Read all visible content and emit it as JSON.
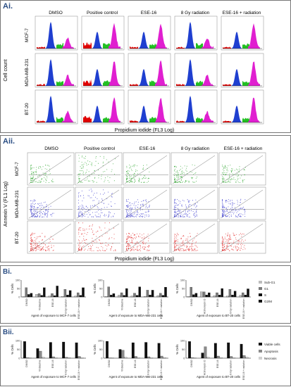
{
  "panels": {
    "Ai": {
      "label": "Ai.",
      "columns": [
        "DMSO",
        "Positive control",
        "ESE-16",
        "8 Gy radiation",
        "ESE-16  + radiation"
      ],
      "rows": [
        "MCF-7",
        "MDA-MB-231",
        "BT-20"
      ],
      "ylabel": "Cell count",
      "xlabel": "Propidium iodide (FL3 Log)",
      "colors": {
        "sub_g1": "#e00000",
        "g1": "#1f3fd0",
        "s": "#22c022",
        "g2m": "#e01fd0"
      }
    },
    "Aii": {
      "label": "Aii.",
      "columns": [
        "DMSO",
        "Positive control",
        "ESE-16",
        "8 Gy radiation",
        "ESE-16  + radiation"
      ],
      "rows": [
        "MCF-7",
        "MDA-MB-231",
        "BT-20"
      ],
      "ylabel": "Annexin V (FL1 Log)",
      "xlabel": "Propidium iodide (FL3 Log)",
      "row_colors": [
        "#2aa52a",
        "#3333cc",
        "#e02020"
      ]
    },
    "Bi": {
      "label": "Bi.",
      "ylabel": "% Cells",
      "legend": [
        "Sub-G1",
        "G1",
        "S",
        "G2/M"
      ],
      "legend_colors": [
        "#bdbdbd",
        "#7a7a7a",
        "#101010",
        "#101010"
      ],
      "charts": [
        {
          "xlabel": "Agent of exposure to MCF-7 cells",
          "categories": [
            "DMSO",
            "Vinblastine",
            "ESE-16",
            "8 Gy radiation",
            "ESE-16 + radiation"
          ]
        },
        {
          "xlabel": "Agent of exposure to MDA-MB-231 cells",
          "categories": [
            "DMSO",
            "Vinblastine",
            "ESE-16",
            "8 Gy radiation",
            "ESE-16 + radiation"
          ]
        },
        {
          "xlabel": "Agent of exposure to BT-20 cells",
          "categories": [
            "DMSO",
            "Actinomycin D",
            "ESE-16",
            "8 Gy radiation",
            "ESE-16 + radiation"
          ]
        }
      ]
    },
    "Bii": {
      "label": "Bii.",
      "ylabel": "% Cells",
      "legend": [
        "Viable cells",
        "Apoptosis",
        "Necrosis"
      ],
      "legend_colors": [
        "#101010",
        "#8a8a8a",
        "#d0d0d0"
      ],
      "charts": [
        {
          "xlabel": "Agent of exposure to MCF-7 cells",
          "categories": [
            "DMSO",
            "Vinblastine",
            "ESE-16",
            "8 Gy radiation",
            "ESE-16 + radiation"
          ]
        },
        {
          "xlabel": "Agent of exposure to MDA-MB-231 cells",
          "categories": [
            "DMSO",
            "Vinblastine",
            "ESE-16",
            "8 Gy radiation",
            "ESE-16 + radiation"
          ]
        },
        {
          "xlabel": "Agent of exposure to BT-20 cells",
          "categories": [
            "DMSO",
            "Actinomycin D",
            "ESE-16",
            "8 Gy radiation",
            "ESE-16 + radiation"
          ]
        }
      ]
    }
  },
  "chart_data": [
    {
      "type": "bar",
      "xlabel": "Agent of exposure to MCF-7 cells",
      "ylabel": "% Cells",
      "ylim": [
        0,
        100
      ],
      "categories": [
        "DMSO",
        "Vinblastine",
        "ESE-16",
        "8 Gy radiation",
        "ESE-16 + radiation"
      ],
      "series": [
        {
          "name": "Sub-G1",
          "values": [
            2,
            15,
            5,
            3,
            6
          ]
        },
        {
          "name": "G1",
          "values": [
            55,
            20,
            20,
            45,
            25
          ]
        },
        {
          "name": "S",
          "values": [
            15,
            10,
            8,
            12,
            10
          ]
        },
        {
          "name": "G2/M",
          "values": [
            22,
            55,
            65,
            38,
            55
          ]
        }
      ]
    },
    {
      "type": "bar",
      "xlabel": "Agent of exposure to MDA-MB-231 cells",
      "ylabel": "% Cells",
      "ylim": [
        0,
        100
      ],
      "categories": [
        "DMSO",
        "Vinblastine",
        "ESE-16",
        "8 Gy radiation",
        "ESE-16 + radiation"
      ],
      "series": [
        {
          "name": "Sub-G1",
          "values": [
            3,
            10,
            6,
            4,
            8
          ]
        },
        {
          "name": "G1",
          "values": [
            60,
            25,
            22,
            40,
            22
          ]
        },
        {
          "name": "S",
          "values": [
            12,
            10,
            10,
            12,
            10
          ]
        },
        {
          "name": "G2/M",
          "values": [
            20,
            50,
            60,
            40,
            58
          ]
        }
      ]
    },
    {
      "type": "bar",
      "xlabel": "Agent of exposure to BT-20 cells",
      "ylabel": "% Cells",
      "ylim": [
        0,
        100
      ],
      "categories": [
        "DMSO",
        "Actinomycin D",
        "ESE-16",
        "8 Gy radiation",
        "ESE-16 + radiation"
      ],
      "series": [
        {
          "name": "Sub-G1",
          "values": [
            3,
            30,
            8,
            5,
            10
          ]
        },
        {
          "name": "G1",
          "values": [
            58,
            30,
            25,
            45,
            25
          ]
        },
        {
          "name": "S",
          "values": [
            14,
            12,
            12,
            12,
            12
          ]
        },
        {
          "name": "G2/M",
          "values": [
            22,
            25,
            50,
            35,
            48
          ]
        }
      ]
    },
    {
      "type": "bar",
      "xlabel": "Agent of exposure to MCF-7 cells",
      "ylabel": "% Cells",
      "ylim": [
        0,
        100
      ],
      "categories": [
        "DMSO",
        "Vinblastine",
        "ESE-16",
        "8 Gy radiation",
        "ESE-16 + radiation"
      ],
      "series": [
        {
          "name": "Viable cells",
          "values": [
            95,
            55,
            90,
            92,
            88
          ]
        },
        {
          "name": "Apoptosis",
          "values": [
            3,
            40,
            8,
            5,
            10
          ]
        },
        {
          "name": "Necrosis",
          "values": [
            2,
            5,
            2,
            3,
            2
          ]
        }
      ]
    },
    {
      "type": "bar",
      "xlabel": "Agent of exposure to MDA-MB-231 cells",
      "ylabel": "% Cells",
      "ylim": [
        0,
        100
      ],
      "categories": [
        "DMSO",
        "Vinblastine",
        "ESE-16",
        "8 Gy radiation",
        "ESE-16 + radiation"
      ],
      "series": [
        {
          "name": "Viable cells",
          "values": [
            96,
            50,
            88,
            90,
            85
          ]
        },
        {
          "name": "Apoptosis",
          "values": [
            2,
            45,
            10,
            8,
            12
          ]
        },
        {
          "name": "Necrosis",
          "values": [
            2,
            5,
            2,
            2,
            3
          ]
        }
      ]
    },
    {
      "type": "bar",
      "xlabel": "Agent of exposure to BT-20 cells",
      "ylabel": "% Cells",
      "ylim": [
        0,
        100
      ],
      "categories": [
        "DMSO",
        "Actinomycin D",
        "ESE-16",
        "8 Gy radiation",
        "ESE-16 + radiation"
      ],
      "series": [
        {
          "name": "Viable cells",
          "values": [
            95,
            30,
            85,
            88,
            80
          ]
        },
        {
          "name": "Apoptosis",
          "values": [
            3,
            65,
            12,
            10,
            15
          ]
        },
        {
          "name": "Necrosis",
          "values": [
            2,
            5,
            3,
            2,
            5
          ]
        }
      ]
    }
  ]
}
